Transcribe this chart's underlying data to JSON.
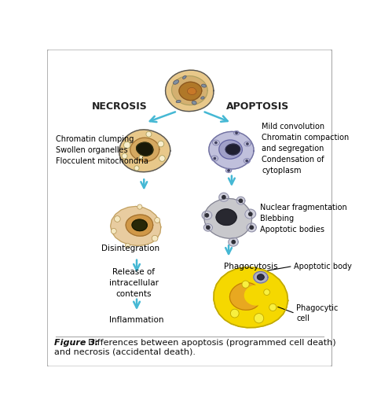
{
  "necrosis_label": "NECROSIS",
  "apoptosis_label": "APOPTOSIS",
  "necrosis_step1_text": "Chromatin clumping\nSwollen organelles\nFlocculent mitochondria",
  "apoptosis_step1_text": "Mild convolution\nChromatin compaction\nand segregation\nCondensation of\ncytoplasm",
  "necrosis_step2_text": "Disintegration",
  "necrosis_step3_text": "Release of\nintracellular\ncontents",
  "necrosis_step4_text": "Inflammation",
  "apoptosis_step2_text": "Nuclear fragmentation\nBlebbing\nApoptotic bodies",
  "apoptosis_step3_text": "Phagocytosis",
  "apoptosis_body_text": "Apoptotic body",
  "phagocytic_text": "Phagocytic\ncell",
  "fig_bold": "Figure 3:",
  "fig_rest": " Differences between apoptosis (programmed cell death)\nand necrosis (accidental death).",
  "bg_color": "#ffffff",
  "border_color": "#aaaaaa",
  "arrow_color": "#45b8d4",
  "text_color": "#000000",
  "cell_orange_light": "#e8c88a",
  "cell_orange_mid": "#d4a860",
  "cell_orange_nucleus": "#b07828",
  "cell_orange_dark": "#181808",
  "cell_purple_light": "#c0c0dc",
  "cell_purple_mid": "#9090b8",
  "cell_purple_nucleus": "#7070a0",
  "cell_purple_dark": "#202030",
  "cell_yellow": "#f5d800",
  "cell_yellow_nucleus": "#e8a820",
  "cell_gray_light": "#c8c8cc",
  "cell_gray_mid": "#a0a0a8",
  "line_color": "#555555"
}
